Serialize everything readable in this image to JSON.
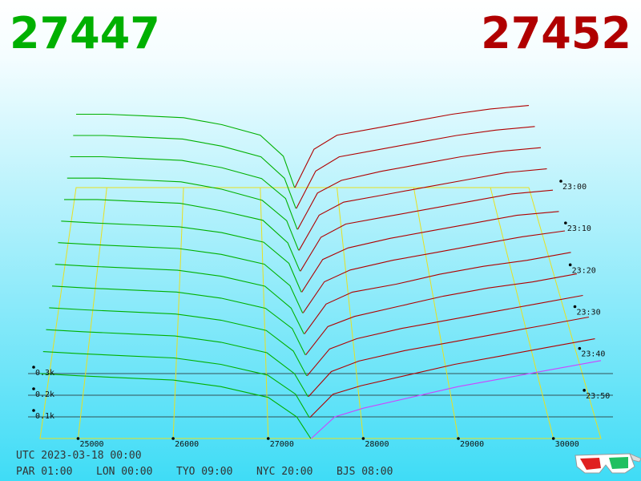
{
  "chart_data": {
    "type": "depth3d",
    "last_bid": 27447,
    "last_ask": 27452,
    "bid_color": "#00b000",
    "ask_color": "#b00000",
    "front_ask_color": "#cc44ff",
    "xlim": [
      24600,
      30500
    ],
    "xticks": [
      25000,
      26000,
      27000,
      28000,
      29000,
      30000
    ],
    "vticks": [
      {
        "value": 0.1,
        "label": "0.1k"
      },
      {
        "value": 0.2,
        "label": "0.2k"
      },
      {
        "value": 0.3,
        "label": "0.3k"
      }
    ],
    "tlim": [
      1380,
      1440
    ],
    "tticks": [
      {
        "value": 1380,
        "label": "23:00"
      },
      {
        "value": 1390,
        "label": "23:10"
      },
      {
        "value": 1400,
        "label": "23:20"
      },
      {
        "value": 1410,
        "label": "23:30"
      },
      {
        "value": 1420,
        "label": "23:40"
      },
      {
        "value": 1430,
        "label": "23:50"
      }
    ],
    "bids": {
      "prices": [
        24600,
        25000,
        25500,
        26000,
        26500,
        27000,
        27300,
        27447
      ],
      "snapshots": [
        {
          "t": 1380,
          "values": [
            0.42,
            0.42,
            0.41,
            0.4,
            0.36,
            0.3,
            0.18,
            0
          ]
        },
        {
          "t": 1385,
          "values": [
            0.41,
            0.41,
            0.4,
            0.39,
            0.35,
            0.29,
            0.17,
            0
          ]
        },
        {
          "t": 1390,
          "values": [
            0.4,
            0.4,
            0.39,
            0.38,
            0.34,
            0.28,
            0.17,
            0
          ]
        },
        {
          "t": 1395,
          "values": [
            0.39,
            0.39,
            0.38,
            0.37,
            0.33,
            0.27,
            0.16,
            0
          ]
        },
        {
          "t": 1400,
          "values": [
            0.38,
            0.38,
            0.37,
            0.36,
            0.32,
            0.27,
            0.15,
            0
          ]
        },
        {
          "t": 1405,
          "values": [
            0.37,
            0.36,
            0.35,
            0.34,
            0.31,
            0.26,
            0.15,
            0
          ]
        },
        {
          "t": 1410,
          "values": [
            0.36,
            0.35,
            0.34,
            0.33,
            0.3,
            0.25,
            0.14,
            0
          ]
        },
        {
          "t": 1415,
          "values": [
            0.35,
            0.34,
            0.33,
            0.32,
            0.29,
            0.24,
            0.13,
            0
          ]
        },
        {
          "t": 1420,
          "values": [
            0.34,
            0.33,
            0.32,
            0.31,
            0.28,
            0.23,
            0.13,
            0
          ]
        },
        {
          "t": 1425,
          "values": [
            0.33,
            0.32,
            0.31,
            0.3,
            0.27,
            0.22,
            0.12,
            0
          ]
        },
        {
          "t": 1430,
          "values": [
            0.32,
            0.31,
            0.3,
            0.29,
            0.26,
            0.21,
            0.11,
            0
          ]
        },
        {
          "t": 1435,
          "values": [
            0.31,
            0.3,
            0.29,
            0.28,
            0.25,
            0.2,
            0.11,
            0
          ]
        },
        {
          "t": 1440,
          "values": [
            0.3,
            0.29,
            0.28,
            0.27,
            0.24,
            0.19,
            0.1,
            0
          ]
        }
      ]
    },
    "asks": {
      "prices": [
        27452,
        27700,
        28000,
        28500,
        29000,
        29500,
        30000,
        30500
      ],
      "snapshots": [
        {
          "t": 1380,
          "values": [
            0,
            0.22,
            0.3,
            0.34,
            0.38,
            0.42,
            0.45,
            0.47
          ]
        },
        {
          "t": 1385,
          "values": [
            0,
            0.21,
            0.29,
            0.33,
            0.37,
            0.41,
            0.44,
            0.46
          ]
        },
        {
          "t": 1390,
          "values": [
            0,
            0.2,
            0.27,
            0.32,
            0.36,
            0.4,
            0.43,
            0.45
          ]
        },
        {
          "t": 1395,
          "values": [
            0,
            0.19,
            0.26,
            0.3,
            0.34,
            0.38,
            0.42,
            0.44
          ]
        },
        {
          "t": 1400,
          "values": [
            0,
            0.18,
            0.25,
            0.29,
            0.33,
            0.37,
            0.41,
            0.43
          ]
        },
        {
          "t": 1405,
          "values": [
            0,
            0.17,
            0.23,
            0.28,
            0.32,
            0.36,
            0.4,
            0.42
          ]
        },
        {
          "t": 1410,
          "values": [
            0,
            0.16,
            0.22,
            0.27,
            0.31,
            0.35,
            0.39,
            0.42
          ]
        },
        {
          "t": 1415,
          "values": [
            0,
            0.15,
            0.21,
            0.25,
            0.3,
            0.34,
            0.37,
            0.41
          ]
        },
        {
          "t": 1420,
          "values": [
            0,
            0.14,
            0.19,
            0.24,
            0.29,
            0.33,
            0.36,
            0.4
          ]
        },
        {
          "t": 1425,
          "values": [
            0,
            0.13,
            0.18,
            0.23,
            0.27,
            0.31,
            0.35,
            0.39
          ]
        },
        {
          "t": 1430,
          "values": [
            0,
            0.12,
            0.17,
            0.22,
            0.26,
            0.3,
            0.34,
            0.38
          ]
        },
        {
          "t": 1435,
          "values": [
            0,
            0.11,
            0.15,
            0.2,
            0.25,
            0.29,
            0.33,
            0.37
          ]
        },
        {
          "t": 1440,
          "values": [
            0,
            0.1,
            0.14,
            0.19,
            0.24,
            0.28,
            0.32,
            0.36
          ]
        }
      ]
    },
    "utc": "UTC 2023-03-18 00:00",
    "clocks": [
      "PAR 01:00",
      "LON 00:00",
      "TYO 09:00",
      "NYC 20:00",
      "BJS 08:00"
    ]
  }
}
